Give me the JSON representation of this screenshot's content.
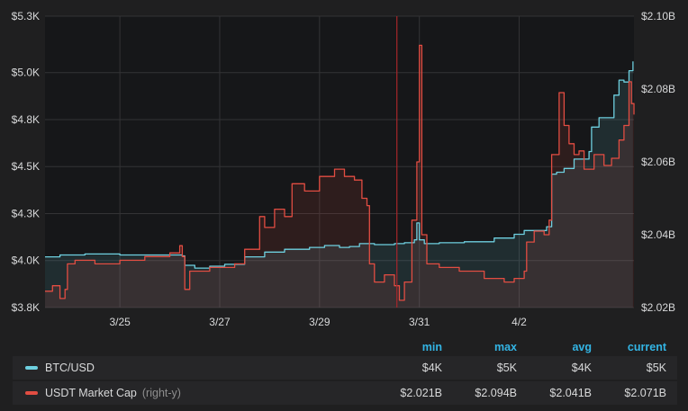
{
  "chart_data": {
    "type": "line",
    "x_ticks": [
      "3/25",
      "3/27",
      "3/29",
      "3/31",
      "4/2"
    ],
    "y_left_ticks": [
      "$5.3K",
      "$5.0K",
      "$4.8K",
      "$4.5K",
      "$4.3K",
      "$4.0K",
      "$3.8K"
    ],
    "y_left_values": [
      5300,
      5000,
      4750,
      4500,
      4250,
      4000,
      3750
    ],
    "y_right_ticks": [
      "$2.10B",
      "$2.08B",
      "$2.06B",
      "$2.04B",
      "$2.02B"
    ],
    "y_right_values": [
      2.1,
      2.08,
      2.06,
      2.04,
      2.02
    ],
    "y_left_lim": [
      3750,
      5300
    ],
    "y_right_lim": [
      2.02,
      2.1
    ],
    "x_range_days": [
      0,
      11.8
    ],
    "x_tick_days": [
      1.5,
      3.5,
      5.5,
      7.5,
      9.5
    ],
    "annotation_day": 7.05,
    "grid": true,
    "series": [
      {
        "name": "BTC/USD",
        "color": "#6ed0e0",
        "axis": "left",
        "points": [
          [
            0,
            4020
          ],
          [
            0.3,
            4030
          ],
          [
            0.8,
            4035
          ],
          [
            1.5,
            4030
          ],
          [
            2.2,
            4030
          ],
          [
            2.75,
            4025
          ],
          [
            2.8,
            3975
          ],
          [
            3.0,
            3960
          ],
          [
            3.3,
            3970
          ],
          [
            3.6,
            3980
          ],
          [
            4.0,
            4020
          ],
          [
            4.4,
            4045
          ],
          [
            4.8,
            4060
          ],
          [
            5.3,
            4070
          ],
          [
            5.6,
            4080
          ],
          [
            5.9,
            4070
          ],
          [
            6.1,
            4075
          ],
          [
            6.3,
            4090
          ],
          [
            6.6,
            4085
          ],
          [
            7.0,
            4090
          ],
          [
            7.2,
            4095
          ],
          [
            7.4,
            4110
          ],
          [
            7.45,
            4200
          ],
          [
            7.5,
            4110
          ],
          [
            7.6,
            4090
          ],
          [
            7.9,
            4095
          ],
          [
            8.4,
            4100
          ],
          [
            9.0,
            4120
          ],
          [
            9.4,
            4140
          ],
          [
            9.6,
            4160
          ],
          [
            9.9,
            4160
          ],
          [
            10.05,
            4180
          ],
          [
            10.15,
            4460
          ],
          [
            10.25,
            4470
          ],
          [
            10.4,
            4490
          ],
          [
            10.6,
            4540
          ],
          [
            10.9,
            4580
          ],
          [
            10.95,
            4710
          ],
          [
            11.1,
            4760
          ],
          [
            11.4,
            4880
          ],
          [
            11.5,
            4960
          ],
          [
            11.6,
            4950
          ],
          [
            11.7,
            5010
          ],
          [
            11.78,
            5060
          ]
        ]
      },
      {
        "name": "USDT Market Cap",
        "axis_label": "(right-y)",
        "color": "#e24d42",
        "axis": "right",
        "points": [
          [
            0,
            2.0245
          ],
          [
            0.15,
            2.026
          ],
          [
            0.3,
            2.0225
          ],
          [
            0.4,
            2.025
          ],
          [
            0.45,
            2.032
          ],
          [
            0.6,
            2.033
          ],
          [
            1.0,
            2.032
          ],
          [
            1.5,
            2.033
          ],
          [
            2.0,
            2.034
          ],
          [
            2.5,
            2.035
          ],
          [
            2.7,
            2.037
          ],
          [
            2.75,
            2.034
          ],
          [
            2.8,
            2.025
          ],
          [
            2.9,
            2.03
          ],
          [
            3.3,
            2.031
          ],
          [
            3.8,
            2.032
          ],
          [
            4.0,
            2.036
          ],
          [
            4.3,
            2.045
          ],
          [
            4.4,
            2.042
          ],
          [
            4.6,
            2.047
          ],
          [
            4.8,
            2.045
          ],
          [
            4.95,
            2.054
          ],
          [
            5.2,
            2.052
          ],
          [
            5.5,
            2.056
          ],
          [
            5.8,
            2.058
          ],
          [
            6.0,
            2.056
          ],
          [
            6.2,
            2.055
          ],
          [
            6.35,
            2.05
          ],
          [
            6.45,
            2.048
          ],
          [
            6.5,
            2.032
          ],
          [
            6.6,
            2.027
          ],
          [
            6.8,
            2.029
          ],
          [
            7.0,
            2.026
          ],
          [
            7.1,
            2.022
          ],
          [
            7.2,
            2.027
          ],
          [
            7.35,
            2.044
          ],
          [
            7.45,
            2.06
          ],
          [
            7.5,
            2.092
          ],
          [
            7.55,
            2.04
          ],
          [
            7.65,
            2.032
          ],
          [
            7.9,
            2.031
          ],
          [
            8.3,
            2.03
          ],
          [
            8.8,
            2.028
          ],
          [
            9.2,
            2.027
          ],
          [
            9.4,
            2.028
          ],
          [
            9.6,
            2.03
          ],
          [
            9.65,
            2.038
          ],
          [
            9.8,
            2.041
          ],
          [
            10.0,
            2.04
          ],
          [
            10.1,
            2.044
          ],
          [
            10.15,
            2.062
          ],
          [
            10.3,
            2.079
          ],
          [
            10.4,
            2.07
          ],
          [
            10.5,
            2.065
          ],
          [
            10.6,
            2.062
          ],
          [
            10.7,
            2.063
          ],
          [
            10.8,
            2.058
          ],
          [
            11.0,
            2.062
          ],
          [
            11.2,
            2.059
          ],
          [
            11.35,
            2.061
          ],
          [
            11.5,
            2.066
          ],
          [
            11.6,
            2.07
          ],
          [
            11.7,
            2.082
          ],
          [
            11.75,
            2.076
          ],
          [
            11.8,
            2.073
          ]
        ]
      }
    ]
  },
  "legend": {
    "headers": {
      "min": "min",
      "max": "max",
      "avg": "avg",
      "current": "current"
    },
    "rows": [
      {
        "name": "BTC/USD",
        "axis_note": "",
        "color": "#6ed0e0",
        "min": "$4K",
        "max": "$5K",
        "avg": "$4K",
        "current": "$5K"
      },
      {
        "name": "USDT Market Cap",
        "axis_note": "(right-y)",
        "color": "#e24d42",
        "min": "$2.021B",
        "max": "$2.094B",
        "avg": "$2.041B",
        "current": "$2.071B"
      }
    ]
  }
}
